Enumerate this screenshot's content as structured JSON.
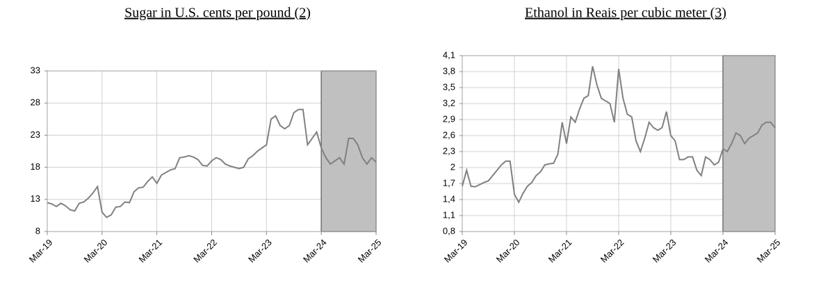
{
  "chart_data": [
    {
      "type": "line",
      "title": "Sugar in U.S. cents per pound (2)",
      "color": "#808080",
      "grid": true,
      "shade": {
        "x": [
          "2024-03",
          "2025-03"
        ],
        "color": "#c0c0c0"
      },
      "xlim": [
        "2019-03",
        "2025-03"
      ],
      "xticks": [
        {
          "value": "2019-03",
          "label": "Mar-19"
        },
        {
          "value": "2020-03",
          "label": "Mar-20"
        },
        {
          "value": "2021-03",
          "label": "Mar-21"
        },
        {
          "value": "2022-03",
          "label": "Mar-22"
        },
        {
          "value": "2023-03",
          "label": "Mar-23"
        },
        {
          "value": "2024-03",
          "label": "Mar-24"
        },
        {
          "value": "2025-03",
          "label": "Mar-25"
        }
      ],
      "ylim": [
        8,
        33
      ],
      "yticks": [
        8,
        13,
        18,
        23,
        28,
        33
      ],
      "x": [
        "2019-03",
        "2019-04",
        "2019-05",
        "2019-06",
        "2019-07",
        "2019-08",
        "2019-09",
        "2019-10",
        "2019-11",
        "2019-12",
        "2020-01",
        "2020-02",
        "2020-03",
        "2020-04",
        "2020-05",
        "2020-06",
        "2020-07",
        "2020-08",
        "2020-09",
        "2020-10",
        "2020-11",
        "2020-12",
        "2021-01",
        "2021-02",
        "2021-03",
        "2021-04",
        "2021-05",
        "2021-06",
        "2021-07",
        "2021-08",
        "2021-09",
        "2021-10",
        "2021-11",
        "2021-12",
        "2022-01",
        "2022-02",
        "2022-03",
        "2022-04",
        "2022-05",
        "2022-06",
        "2022-07",
        "2022-08",
        "2022-09",
        "2022-10",
        "2022-11",
        "2022-12",
        "2023-01",
        "2023-02",
        "2023-03",
        "2023-04",
        "2023-05",
        "2023-06",
        "2023-07",
        "2023-08",
        "2023-09",
        "2023-10",
        "2023-11",
        "2023-12",
        "2024-01",
        "2024-02",
        "2024-03",
        "2024-04",
        "2024-05",
        "2024-06",
        "2024-07",
        "2024-08",
        "2024-09",
        "2024-10",
        "2024-11",
        "2024-12",
        "2025-01",
        "2025-02",
        "2025-03"
      ],
      "values": [
        12.5,
        12.3,
        11.9,
        12.4,
        12.0,
        11.4,
        11.2,
        12.4,
        12.6,
        13.2,
        14.0,
        15.0,
        11.0,
        10.2,
        10.6,
        11.8,
        11.9,
        12.6,
        12.5,
        14.2,
        14.8,
        14.9,
        15.8,
        16.5,
        15.5,
        16.8,
        17.2,
        17.6,
        17.8,
        19.5,
        19.6,
        19.8,
        19.6,
        19.2,
        18.3,
        18.2,
        19.0,
        19.5,
        19.2,
        18.5,
        18.2,
        18.0,
        17.8,
        18.0,
        19.3,
        19.8,
        20.5,
        21.0,
        21.5,
        25.5,
        26.0,
        24.5,
        24.0,
        24.5,
        26.5,
        27.0,
        27.0,
        21.5,
        22.5,
        23.5,
        21.0,
        19.5,
        18.5,
        19.0,
        19.5,
        18.5,
        22.5,
        22.5,
        21.5,
        19.5,
        18.5,
        19.5,
        18.8
      ]
    },
    {
      "type": "line",
      "title": "Ethanol in Reais per cubic meter (3)",
      "color": "#808080",
      "grid": true,
      "shade": {
        "x": [
          "2024-03",
          "2025-03"
        ],
        "color": "#c0c0c0"
      },
      "xlim": [
        "2019-03",
        "2025-03"
      ],
      "xticks": [
        {
          "value": "2019-03",
          "label": "Mar-19"
        },
        {
          "value": "2020-03",
          "label": "Mar-20"
        },
        {
          "value": "2021-03",
          "label": "Mar-21"
        },
        {
          "value": "2022-03",
          "label": "Mar-22"
        },
        {
          "value": "2023-03",
          "label": "Mar-23"
        },
        {
          "value": "2024-03",
          "label": "Mar-24"
        },
        {
          "value": "2025-03",
          "label": "Mar-25"
        }
      ],
      "ylim": [
        0.8,
        4.1
      ],
      "yticks": [
        {
          "value": 0.8,
          "label": "0,8"
        },
        {
          "value": 1.1,
          "label": "1,1"
        },
        {
          "value": 1.4,
          "label": "1,4"
        },
        {
          "value": 1.7,
          "label": "1,7"
        },
        2,
        {
          "value": 2.3,
          "label": "2,3"
        },
        {
          "value": 2.6,
          "label": "2,6"
        },
        {
          "value": 2.9,
          "label": "2,9"
        },
        {
          "value": 3.2,
          "label": "3,2"
        },
        {
          "value": 3.5,
          "label": "3,5"
        },
        {
          "value": 3.8,
          "label": "3,8"
        },
        {
          "value": 4.1,
          "label": "4,1"
        }
      ],
      "x": [
        "2019-03",
        "2019-04",
        "2019-05",
        "2019-06",
        "2019-07",
        "2019-08",
        "2019-09",
        "2019-10",
        "2019-11",
        "2019-12",
        "2020-01",
        "2020-02",
        "2020-03",
        "2020-04",
        "2020-05",
        "2020-06",
        "2020-07",
        "2020-08",
        "2020-09",
        "2020-10",
        "2020-11",
        "2020-12",
        "2021-01",
        "2021-02",
        "2021-03",
        "2021-04",
        "2021-05",
        "2021-06",
        "2021-07",
        "2021-08",
        "2021-09",
        "2021-10",
        "2021-11",
        "2021-12",
        "2022-01",
        "2022-02",
        "2022-03",
        "2022-04",
        "2022-05",
        "2022-06",
        "2022-07",
        "2022-08",
        "2022-09",
        "2022-10",
        "2022-11",
        "2022-12",
        "2023-01",
        "2023-02",
        "2023-03",
        "2023-04",
        "2023-05",
        "2023-06",
        "2023-07",
        "2023-08",
        "2023-09",
        "2023-10",
        "2023-11",
        "2023-12",
        "2024-01",
        "2024-02",
        "2024-03",
        "2024-04",
        "2024-05",
        "2024-06",
        "2024-07",
        "2024-08",
        "2024-09",
        "2024-10",
        "2024-11",
        "2024-12",
        "2025-01",
        "2025-02",
        "2025-03"
      ],
      "values": [
        1.65,
        1.95,
        1.65,
        1.64,
        1.68,
        1.72,
        1.75,
        1.85,
        1.95,
        2.05,
        2.12,
        2.12,
        1.5,
        1.35,
        1.52,
        1.65,
        1.72,
        1.85,
        1.92,
        2.05,
        2.07,
        2.08,
        2.25,
        2.85,
        2.45,
        2.95,
        2.85,
        3.1,
        3.3,
        3.35,
        3.9,
        3.55,
        3.3,
        3.25,
        3.2,
        2.85,
        3.85,
        3.3,
        3.0,
        2.95,
        2.5,
        2.3,
        2.55,
        2.85,
        2.75,
        2.7,
        2.75,
        3.05,
        2.6,
        2.5,
        2.15,
        2.15,
        2.2,
        2.2,
        1.95,
        1.85,
        2.2,
        2.15,
        2.05,
        2.1,
        2.35,
        2.3,
        2.45,
        2.65,
        2.6,
        2.45,
        2.55,
        2.6,
        2.65,
        2.8,
        2.85,
        2.85,
        2.75
      ]
    }
  ]
}
